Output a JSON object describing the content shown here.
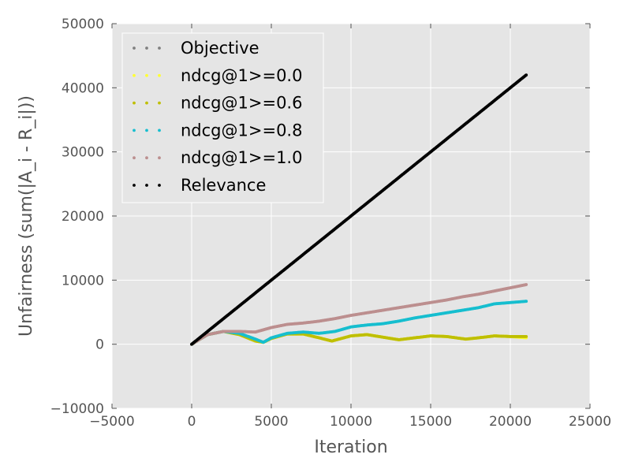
{
  "chart_data": {
    "type": "scatter",
    "title": "",
    "xlabel": "Iteration",
    "ylabel": "Unfairness (sum(|A_i - R_i|))",
    "xlim": [
      -5000,
      25000
    ],
    "ylim": [
      -10000,
      50000
    ],
    "xticks": [
      -5000,
      0,
      5000,
      10000,
      15000,
      20000,
      25000
    ],
    "xtick_labels": [
      "−5000",
      "0",
      "5000",
      "10000",
      "15000",
      "20000",
      "25000"
    ],
    "yticks": [
      -10000,
      0,
      10000,
      20000,
      30000,
      40000,
      50000
    ],
    "ytick_labels": [
      "−10000",
      "0",
      "10000",
      "20000",
      "30000",
      "40000",
      "50000"
    ],
    "grid": true,
    "legend_position": "upper-left",
    "series": [
      {
        "name": "Objective",
        "color": "#808080",
        "x": [],
        "y": []
      },
      {
        "name": "ndcg@1>=0.0",
        "color": "#ffff33",
        "x": [
          0,
          1000,
          2000,
          3000,
          4000,
          4500,
          5000,
          6000,
          7000,
          8000,
          8800,
          10000,
          11000,
          12000,
          13000,
          14000,
          15000,
          16000,
          17200,
          18000,
          19000,
          20000,
          21000
        ],
        "y": [
          0,
          1500,
          2000,
          1500,
          500,
          300,
          900,
          1600,
          1600,
          1000,
          500,
          1300,
          1500,
          1100,
          700,
          1000,
          1300,
          1200,
          800,
          1000,
          1300,
          1200,
          1000
        ]
      },
      {
        "name": "ndcg@1>=0.6",
        "color": "#bfbf00",
        "x": [
          0,
          1000,
          2000,
          3000,
          4000,
          4500,
          5000,
          6000,
          7000,
          8000,
          8800,
          10000,
          11000,
          12000,
          13000,
          14000,
          15000,
          16000,
          17200,
          18000,
          19000,
          20000,
          21000
        ],
        "y": [
          0,
          1500,
          2000,
          1500,
          500,
          300,
          900,
          1600,
          1600,
          1000,
          500,
          1300,
          1500,
          1100,
          700,
          1000,
          1300,
          1200,
          800,
          1000,
          1300,
          1200,
          1200
        ]
      },
      {
        "name": "ndcg@1>=0.8",
        "color": "#17becf",
        "x": [
          0,
          1000,
          2000,
          3000,
          4000,
          4500,
          5000,
          6000,
          7000,
          8000,
          9000,
          10000,
          11000,
          12000,
          13000,
          14000,
          15000,
          16000,
          17000,
          18000,
          19000,
          20000,
          21000
        ],
        "y": [
          0,
          1500,
          2000,
          1700,
          800,
          300,
          1000,
          1700,
          1900,
          1700,
          2000,
          2700,
          3000,
          3200,
          3600,
          4100,
          4500,
          4900,
          5300,
          5700,
          6300,
          6500,
          6700
        ]
      },
      {
        "name": "ndcg@1>=1.0",
        "color": "#bc8f8f",
        "x": [
          0,
          1000,
          2000,
          3000,
          4000,
          5000,
          6000,
          7000,
          8000,
          9000,
          10000,
          11000,
          12000,
          13000,
          14000,
          15000,
          16000,
          17000,
          18000,
          19000,
          20000,
          21000
        ],
        "y": [
          0,
          1500,
          2000,
          2000,
          1900,
          2600,
          3100,
          3300,
          3600,
          4000,
          4500,
          4900,
          5300,
          5700,
          6100,
          6500,
          6900,
          7400,
          7800,
          8300,
          8800,
          9300
        ]
      },
      {
        "name": "Relevance",
        "color": "#000000",
        "x": [
          0,
          21000
        ],
        "y": [
          0,
          42000
        ]
      }
    ]
  }
}
